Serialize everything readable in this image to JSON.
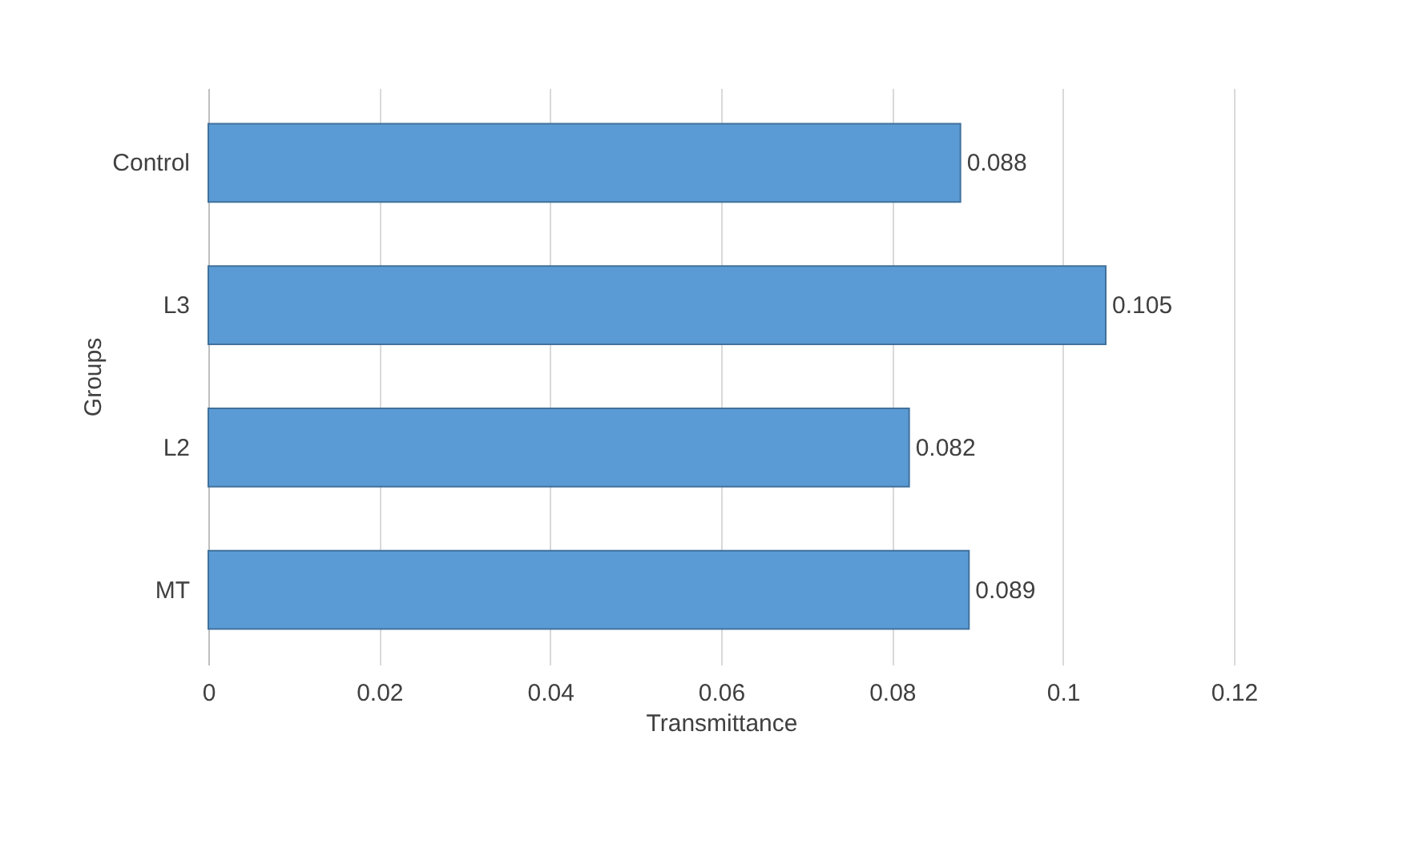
{
  "chart_data": {
    "type": "bar",
    "orientation": "horizontal",
    "xlabel": "Transmittance",
    "ylabel": "Groups",
    "categories": [
      "Control",
      "L3",
      "L2",
      "MT"
    ],
    "values": [
      0.088,
      0.105,
      0.082,
      0.089
    ],
    "color": "#5b9bd5",
    "data_labels": true,
    "grid": "x",
    "xlim": [
      0,
      0.12
    ],
    "xticks": [
      0,
      0.02,
      0.04,
      0.06,
      0.08,
      0.1,
      0.12
    ]
  }
}
